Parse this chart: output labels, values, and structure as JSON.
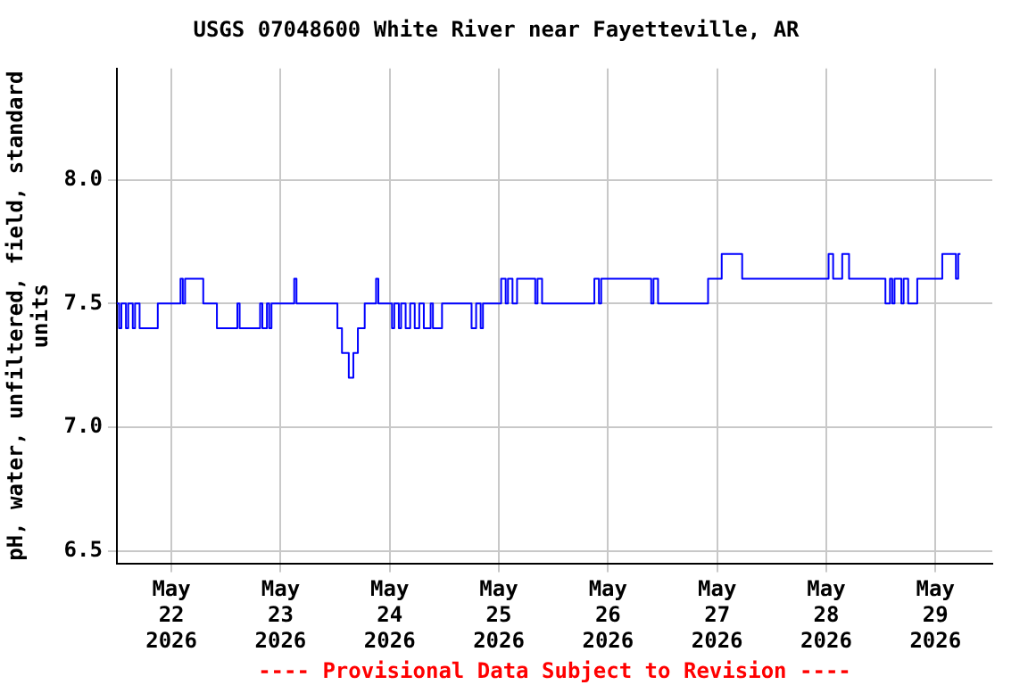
{
  "chart_data": {
    "type": "step",
    "title": "USGS 07048600 White River near Fayetteville, AR",
    "ylabel": "pH, water, unfiltered, field, standard units",
    "annotations": [
      "---- Provisional Data Subject to Revision ----"
    ],
    "x": [
      "2026-05-21T12:00",
      "2026-05-21T12:30",
      "2026-05-21T13:00",
      "2026-05-21T14:00",
      "2026-05-21T14:30",
      "2026-05-21T15:30",
      "2026-05-21T16:00",
      "2026-05-21T17:00",
      "2026-05-21T21:00",
      "2026-05-22T02:00",
      "2026-05-22T02:30",
      "2026-05-22T03:00",
      "2026-05-22T07:00",
      "2026-05-22T10:00",
      "2026-05-22T14:30",
      "2026-05-22T15:00",
      "2026-05-22T19:30",
      "2026-05-22T20:00",
      "2026-05-22T21:00",
      "2026-05-22T21:30",
      "2026-05-22T22:00",
      "2026-05-23T03:00",
      "2026-05-23T03:30",
      "2026-05-23T12:30",
      "2026-05-23T13:30",
      "2026-05-23T15:00",
      "2026-05-23T16:00",
      "2026-05-23T17:00",
      "2026-05-23T18:30",
      "2026-05-23T21:00",
      "2026-05-23T21:30",
      "2026-05-24T00:30",
      "2026-05-24T01:00",
      "2026-05-24T02:00",
      "2026-05-24T02:30",
      "2026-05-24T03:30",
      "2026-05-24T04:30",
      "2026-05-24T05:30",
      "2026-05-24T06:30",
      "2026-05-24T07:30",
      "2026-05-24T09:00",
      "2026-05-24T09:30",
      "2026-05-24T11:30",
      "2026-05-24T18:00",
      "2026-05-24T19:00",
      "2026-05-24T20:00",
      "2026-05-24T20:30",
      "2026-05-25T00:30",
      "2026-05-25T01:30",
      "2026-05-25T02:00",
      "2026-05-25T03:00",
      "2026-05-25T04:00",
      "2026-05-25T08:00",
      "2026-05-25T08:30",
      "2026-05-25T09:30",
      "2026-05-25T21:00",
      "2026-05-25T22:00",
      "2026-05-25T22:30",
      "2026-05-26T09:30",
      "2026-05-26T10:00",
      "2026-05-26T11:00",
      "2026-05-26T22:00",
      "2026-05-27T01:00",
      "2026-05-27T05:30",
      "2026-05-28T00:30",
      "2026-05-28T01:30",
      "2026-05-28T03:30",
      "2026-05-28T05:00",
      "2026-05-28T13:00",
      "2026-05-28T14:00",
      "2026-05-28T14:30",
      "2026-05-28T15:00",
      "2026-05-28T16:30",
      "2026-05-28T17:00",
      "2026-05-28T18:00",
      "2026-05-28T20:00",
      "2026-05-29T01:30",
      "2026-05-29T04:30",
      "2026-05-29T05:00",
      "2026-05-29T05:30"
    ],
    "series": [
      {
        "color": "#0000ff",
        "values": [
          7.5,
          7.4,
          7.5,
          7.4,
          7.5,
          7.4,
          7.5,
          7.4,
          7.5,
          7.6,
          7.5,
          7.6,
          7.5,
          7.4,
          7.5,
          7.4,
          7.5,
          7.4,
          7.5,
          7.4,
          7.5,
          7.6,
          7.5,
          7.4,
          7.3,
          7.2,
          7.3,
          7.4,
          7.5,
          7.6,
          7.5,
          7.4,
          7.5,
          7.4,
          7.5,
          7.4,
          7.5,
          7.4,
          7.5,
          7.4,
          7.5,
          7.4,
          7.5,
          7.4,
          7.5,
          7.4,
          7.5,
          7.6,
          7.5,
          7.6,
          7.5,
          7.6,
          7.5,
          7.6,
          7.5,
          7.6,
          7.5,
          7.6,
          7.5,
          7.6,
          7.5,
          7.6,
          7.7,
          7.6,
          7.7,
          7.6,
          7.7,
          7.6,
          7.5,
          7.6,
          7.5,
          7.6,
          7.5,
          7.6,
          7.5,
          7.6,
          7.7,
          7.6,
          7.7,
          7.7
        ]
      }
    ],
    "xlim": [
      "2026-05-21T12:00",
      "2026-05-29T12:30"
    ],
    "xticks": [
      {
        "value": "2026-05-22T00:00",
        "label": "May 22 2026"
      },
      {
        "value": "2026-05-23T00:00",
        "label": "May 23 2026"
      },
      {
        "value": "2026-05-24T00:00",
        "label": "May 24 2026"
      },
      {
        "value": "2026-05-25T00:00",
        "label": "May 25 2026"
      },
      {
        "value": "2026-05-26T00:00",
        "label": "May 26 2026"
      },
      {
        "value": "2026-05-27T00:00",
        "label": "May 27 2026"
      },
      {
        "value": "2026-05-28T00:00",
        "label": "May 28 2026"
      },
      {
        "value": "2026-05-29T00:00",
        "label": "May 29 2026"
      }
    ],
    "ylim": [
      6.45,
      8.45
    ],
    "yticks": [
      {
        "value": 6.5,
        "label": "6.5"
      },
      {
        "value": 7.0,
        "label": "7.0"
      },
      {
        "value": 7.5,
        "label": "7.5"
      },
      {
        "value": 8.0,
        "label": "8.0"
      }
    ],
    "grid": true,
    "legend": false,
    "marker": "none",
    "line_style": "solid"
  }
}
